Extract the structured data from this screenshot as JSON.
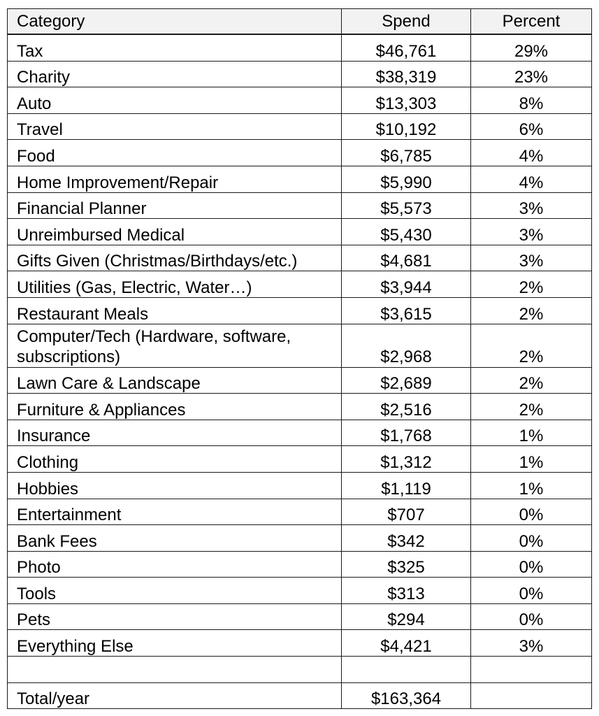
{
  "table": {
    "headers": {
      "category": "Category",
      "spend": "Spend",
      "percent": "Percent"
    },
    "rows": [
      {
        "category": "Tax",
        "spend": "$46,761",
        "percent": "29%"
      },
      {
        "category": "Charity",
        "spend": "$38,319",
        "percent": "23%"
      },
      {
        "category": "Auto",
        "spend": "$13,303",
        "percent": "8%"
      },
      {
        "category": "Travel",
        "spend": "$10,192",
        "percent": "6%"
      },
      {
        "category": "Food",
        "spend": "$6,785",
        "percent": "4%"
      },
      {
        "category": "Home Improvement/Repair",
        "spend": "$5,990",
        "percent": "4%"
      },
      {
        "category": "Financial Planner",
        "spend": "$5,573",
        "percent": "3%"
      },
      {
        "category": "Unreimbursed Medical",
        "spend": "$5,430",
        "percent": "3%"
      },
      {
        "category": "Gifts Given (Christmas/Birthdays/etc.)",
        "spend": "$4,681",
        "percent": "3%"
      },
      {
        "category": "Utilities (Gas, Electric, Water…)",
        "spend": "$3,944",
        "percent": "2%"
      },
      {
        "category": "Restaurant Meals",
        "spend": "$3,615",
        "percent": "2%"
      },
      {
        "category": "Computer/Tech (Hardware, software, subscriptions)",
        "spend": "$2,968",
        "percent": "2%"
      },
      {
        "category": "Lawn Care & Landscape",
        "spend": "$2,689",
        "percent": "2%"
      },
      {
        "category": "Furniture & Appliances",
        "spend": "$2,516",
        "percent": "2%"
      },
      {
        "category": "Insurance",
        "spend": "$1,768",
        "percent": "1%"
      },
      {
        "category": "Clothing",
        "spend": "$1,312",
        "percent": "1%"
      },
      {
        "category": "Hobbies",
        "spend": "$1,119",
        "percent": "1%"
      },
      {
        "category": "Entertainment",
        "spend": "$707",
        "percent": "0%"
      },
      {
        "category": "Bank Fees",
        "spend": "$342",
        "percent": "0%"
      },
      {
        "category": "Photo",
        "spend": "$325",
        "percent": "0%"
      },
      {
        "category": "Tools",
        "spend": "$313",
        "percent": "0%"
      },
      {
        "category": "Pets",
        "spend": "$294",
        "percent": "0%"
      },
      {
        "category": "Everything Else",
        "spend": "$4,421",
        "percent": "3%"
      }
    ],
    "total": {
      "category": "Total/year",
      "spend": "$163,364",
      "percent": ""
    }
  }
}
